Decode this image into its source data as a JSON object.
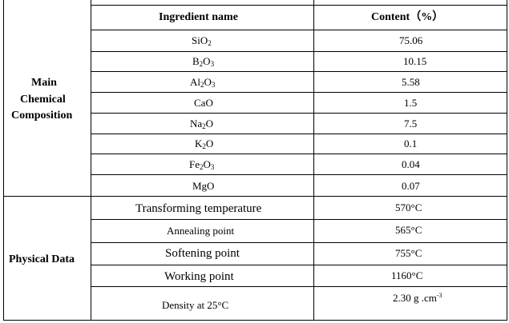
{
  "headers": {
    "ingredient": "Ingredient name",
    "content": "Content（%）"
  },
  "sections": {
    "main": {
      "label_line1": "Main",
      "label_line2": "Chemical",
      "label_line3": "Composition"
    },
    "physical": {
      "label": "Physical Data"
    }
  },
  "composition": [
    {
      "base1": "SiO",
      "sub1": "2",
      "base2": "",
      "sub2": "",
      "tail": "",
      "value": "75.06"
    },
    {
      "base1": "B",
      "sub1": "2",
      "base2": "O",
      "sub2": "3",
      "tail": "",
      "value": "10.15"
    },
    {
      "base1": "Al",
      "sub1": "2",
      "base2": "O",
      "sub2": "3",
      "tail": "",
      "value": "5.58"
    },
    {
      "base1": "CaO",
      "sub1": "",
      "base2": "",
      "sub2": "",
      "tail": "",
      "value": "1.5"
    },
    {
      "base1": "Na",
      "sub1": "2",
      "base2": "O",
      "sub2": "",
      "tail": "",
      "value": "7.5"
    },
    {
      "base1": "K",
      "sub1": "2",
      "base2": "O",
      "sub2": "",
      "tail": "",
      "value": "0.1"
    },
    {
      "base1": "Fe",
      "sub1": "2",
      "base2": "O",
      "sub2": "3",
      "tail": "",
      "value": "0.04"
    },
    {
      "base1": "MgO",
      "sub1": "",
      "base2": "",
      "sub2": "",
      "tail": "",
      "value": "0.07"
    }
  ],
  "physical": [
    {
      "name": "Transforming temperature",
      "value": "570°C"
    },
    {
      "name": "Annealing point",
      "value": "565°C"
    },
    {
      "name": "Softening point",
      "value": "755°C"
    },
    {
      "name": "Working point",
      "value": "1160°C"
    },
    {
      "name": "Density at 25°C",
      "value_main": "2.30 g .cm",
      "value_sup": "-3"
    }
  ]
}
